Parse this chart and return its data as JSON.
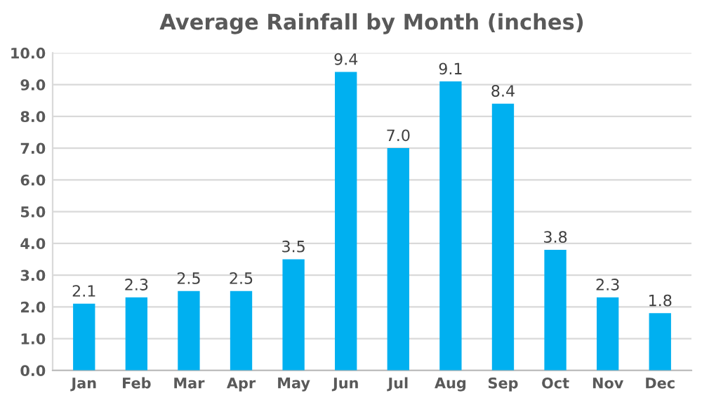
{
  "chart_data": {
    "type": "bar",
    "title": "Average Rainfall by Month (inches)",
    "categories": [
      "Jan",
      "Feb",
      "Mar",
      "Apr",
      "May",
      "Jun",
      "Jul",
      "Aug",
      "Sep",
      "Oct",
      "Nov",
      "Dec"
    ],
    "values": [
      2.1,
      2.3,
      2.5,
      2.5,
      3.5,
      9.4,
      7.0,
      9.1,
      8.4,
      3.8,
      2.3,
      1.8
    ],
    "value_labels": [
      "2.1",
      "2.3",
      "2.5",
      "2.5",
      "3.5",
      "9.4",
      "7.0",
      "9.1",
      "8.4",
      "3.8",
      "2.3",
      "1.8"
    ],
    "color": "#00b0f0",
    "ylim": [
      0,
      10
    ],
    "yticks": [
      {
        "value": 0,
        "label": "0.0"
      },
      {
        "value": 1,
        "label": "1.0"
      },
      {
        "value": 2,
        "label": "2.0"
      },
      {
        "value": 3,
        "label": "3.0"
      },
      {
        "value": 4,
        "label": "4.0"
      },
      {
        "value": 5,
        "label": "5.0"
      },
      {
        "value": 6,
        "label": "6.0"
      },
      {
        "value": 7,
        "label": "7.0"
      },
      {
        "value": 8,
        "label": "8.0"
      },
      {
        "value": 9,
        "label": "9.0"
      },
      {
        "value": 10,
        "label": "10.0"
      }
    ],
    "grid": "y"
  }
}
